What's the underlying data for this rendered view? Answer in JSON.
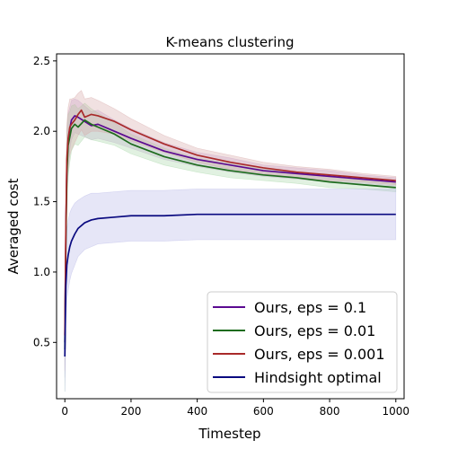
{
  "chart_data": {
    "type": "line",
    "title": "K-means clustering",
    "xlabel": "Timestep",
    "ylabel": "Averaged cost",
    "xlim": [
      -25,
      1025
    ],
    "ylim": [
      0.1,
      2.55
    ],
    "xticks": [
      0,
      200,
      400,
      600,
      800,
      1000
    ],
    "yticks": [
      0.5,
      1.0,
      1.5,
      2.0,
      2.5
    ],
    "xtick_labels": [
      "0",
      "200",
      "400",
      "600",
      "800",
      "1000"
    ],
    "ytick_labels": [
      "0.5",
      "1.0",
      "1.5",
      "2.0",
      "2.5"
    ],
    "grid": false,
    "legend_position": "lower-right",
    "series": [
      {
        "name": "Ours, eps = 0.1",
        "color": "#5b0a91",
        "band_color": "#c8a2d6",
        "x": [
          0,
          3,
          6,
          10,
          15,
          20,
          30,
          40,
          60,
          80,
          100,
          150,
          200,
          300,
          400,
          500,
          600,
          700,
          800,
          900,
          1000
        ],
        "y": [
          0.5,
          1.25,
          1.75,
          1.93,
          2.02,
          2.08,
          2.11,
          2.1,
          2.07,
          2.04,
          2.05,
          2.0,
          1.95,
          1.86,
          1.8,
          1.76,
          1.72,
          1.7,
          1.68,
          1.66,
          1.64
        ],
        "band": [
          0.25,
          0.25,
          0.25,
          0.2,
          0.15,
          0.14,
          0.12,
          0.12,
          0.11,
          0.1,
          0.1,
          0.08,
          0.07,
          0.06,
          0.05,
          0.05,
          0.04,
          0.04,
          0.04,
          0.03,
          0.03
        ]
      },
      {
        "name": "Ours, eps = 0.01",
        "color": "#1e6b1e",
        "band_color": "#a8d8a8",
        "x": [
          0,
          3,
          6,
          10,
          15,
          20,
          30,
          40,
          60,
          80,
          100,
          150,
          200,
          300,
          400,
          500,
          600,
          700,
          800,
          900,
          1000
        ],
        "y": [
          0.45,
          1.2,
          1.7,
          1.9,
          1.96,
          2.02,
          2.05,
          2.03,
          2.08,
          2.05,
          2.03,
          1.98,
          1.91,
          1.82,
          1.76,
          1.72,
          1.69,
          1.67,
          1.64,
          1.62,
          1.6
        ],
        "band": [
          0.3,
          0.3,
          0.3,
          0.22,
          0.18,
          0.16,
          0.14,
          0.13,
          0.12,
          0.11,
          0.1,
          0.08,
          0.07,
          0.06,
          0.05,
          0.05,
          0.04,
          0.04,
          0.04,
          0.03,
          0.03
        ]
      },
      {
        "name": "Ours, eps = 0.001",
        "color": "#a82a2a",
        "band_color": "#d8a8a8",
        "x": [
          0,
          3,
          6,
          10,
          15,
          20,
          30,
          40,
          50,
          60,
          80,
          100,
          150,
          200,
          300,
          400,
          500,
          600,
          700,
          800,
          900,
          1000
        ],
        "y": [
          0.55,
          1.3,
          1.8,
          1.95,
          2.03,
          2.05,
          2.08,
          2.12,
          2.15,
          2.1,
          2.12,
          2.11,
          2.07,
          2.01,
          1.91,
          1.83,
          1.78,
          1.74,
          1.71,
          1.69,
          1.67,
          1.65
        ],
        "band": [
          0.25,
          0.25,
          0.25,
          0.22,
          0.2,
          0.18,
          0.16,
          0.15,
          0.14,
          0.13,
          0.12,
          0.11,
          0.09,
          0.08,
          0.06,
          0.05,
          0.05,
          0.04,
          0.04,
          0.04,
          0.03,
          0.03
        ]
      },
      {
        "name": "Hindsight optimal",
        "color": "#0a0a80",
        "band_color": "#b8b8e8",
        "x": [
          0,
          3,
          6,
          10,
          15,
          20,
          30,
          40,
          60,
          80,
          100,
          150,
          200,
          250,
          300,
          400,
          500,
          600,
          700,
          800,
          900,
          1000
        ],
        "y": [
          0.4,
          0.9,
          1.05,
          1.12,
          1.18,
          1.22,
          1.27,
          1.31,
          1.35,
          1.37,
          1.38,
          1.39,
          1.4,
          1.4,
          1.4,
          1.41,
          1.41,
          1.41,
          1.41,
          1.41,
          1.41,
          1.41
        ],
        "band": [
          0.25,
          0.25,
          0.25,
          0.25,
          0.24,
          0.23,
          0.22,
          0.2,
          0.19,
          0.19,
          0.18,
          0.18,
          0.18,
          0.18,
          0.18,
          0.18,
          0.18,
          0.18,
          0.18,
          0.18,
          0.18,
          0.18
        ]
      }
    ]
  }
}
